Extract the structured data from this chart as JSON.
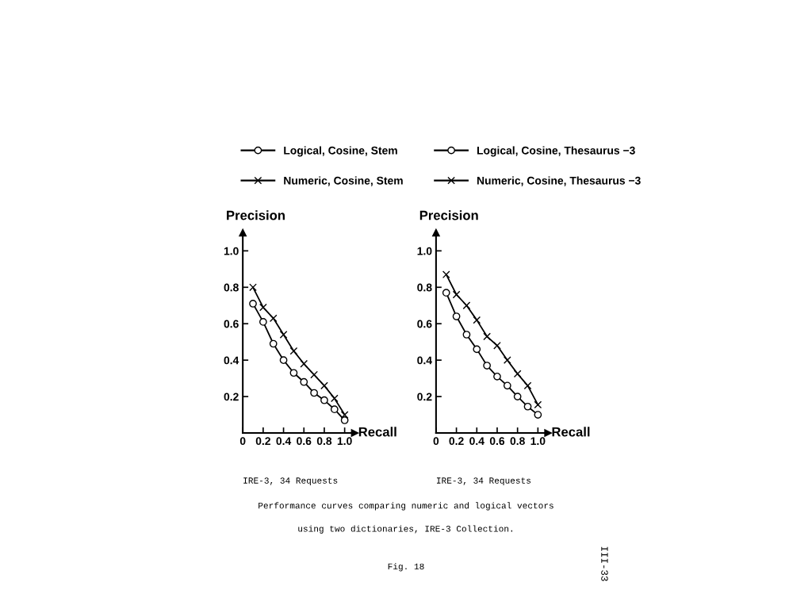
{
  "chart_data": [
    {
      "type": "line",
      "xlabel": "Recall",
      "ylabel": "Precision",
      "x": [
        0.1,
        0.2,
        0.3,
        0.4,
        0.5,
        0.6,
        0.7,
        0.8,
        0.9,
        1.0
      ],
      "series": [
        {
          "name": "Logical, Cosine, Stem",
          "color": "#000000",
          "marker": "circle",
          "values": [
            0.71,
            0.61,
            0.49,
            0.4,
            0.33,
            0.28,
            0.22,
            0.18,
            0.13,
            0.07
          ]
        },
        {
          "name": "Numeric, Cosine, Stem",
          "color": "#000000",
          "marker": "cross",
          "values": [
            0.8,
            0.69,
            0.63,
            0.54,
            0.45,
            0.38,
            0.32,
            0.26,
            0.19,
            0.1
          ]
        }
      ],
      "xlim": [
        0,
        1.1
      ],
      "ylim": [
        0,
        1.1
      ],
      "xticks": [
        0,
        0.2,
        0.4,
        0.6,
        0.8,
        {
          "value": 1,
          "label": "1.0"
        }
      ],
      "yticks": [
        0.2,
        0.4,
        0.6,
        0.8,
        {
          "value": 1,
          "label": "1.0"
        }
      ],
      "grid": false,
      "legend": "top",
      "line_style": "solid",
      "annotations": [
        "IRE-3, 34 Requests"
      ]
    },
    {
      "type": "line",
      "xlabel": "Recall",
      "ylabel": "Precision",
      "x": [
        0.1,
        0.2,
        0.3,
        0.4,
        0.5,
        0.6,
        0.7,
        0.8,
        0.9,
        1.0
      ],
      "series": [
        {
          "name": "Logical, Cosine, Thesaurus −3",
          "color": "#000000",
          "marker": "circle",
          "values": [
            0.77,
            0.64,
            0.54,
            0.46,
            0.37,
            0.31,
            0.26,
            0.2,
            0.145,
            0.1
          ]
        },
        {
          "name": "Numeric, Cosine, Thesaurus −3",
          "color": "#000000",
          "marker": "cross",
          "values": [
            0.87,
            0.76,
            0.7,
            0.62,
            0.53,
            0.48,
            0.4,
            0.325,
            0.26,
            0.155
          ]
        }
      ],
      "xlim": [
        0,
        1.1
      ],
      "ylim": [
        0,
        1.1
      ],
      "xticks": [
        0,
        0.2,
        0.4,
        0.6,
        0.8,
        {
          "value": 1,
          "label": "1.0"
        }
      ],
      "yticks": [
        0.2,
        0.4,
        0.6,
        0.8,
        {
          "value": 1,
          "label": "1.0"
        }
      ],
      "grid": false,
      "legend": "top",
      "line_style": "solid",
      "annotations": [
        "IRE-3, 34 Requests",
        "Performance curves comparing numeric and logical vectors",
        "using two dictionaries, IRE-3 Collection.",
        "Fig. 18",
        "III-33"
      ]
    }
  ]
}
